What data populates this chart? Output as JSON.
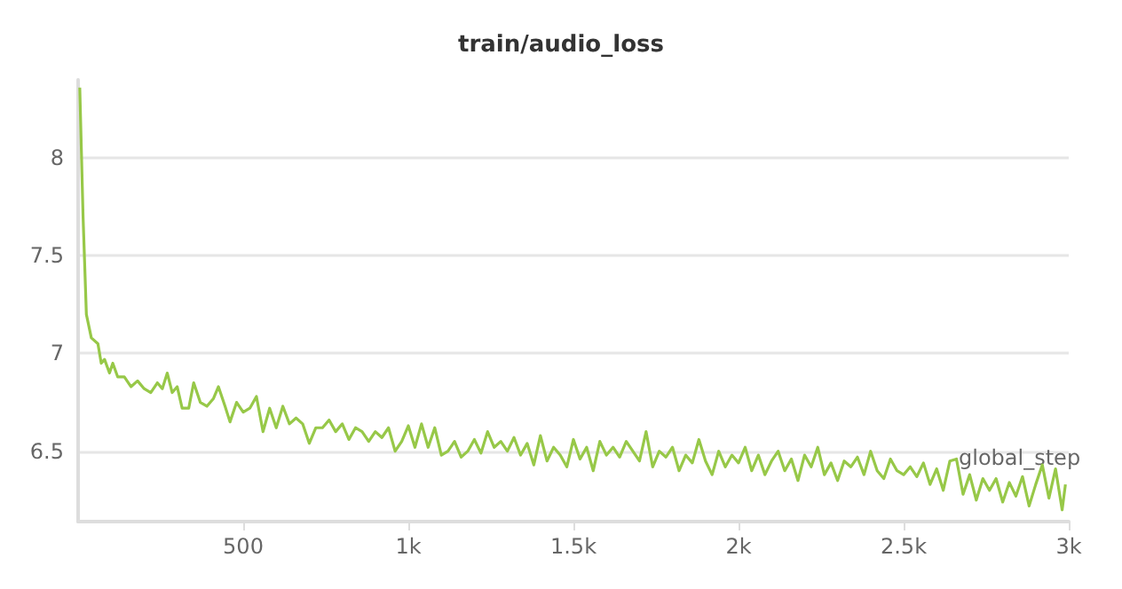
{
  "chart_data": {
    "type": "line",
    "title": "train/audio_loss",
    "xlabel": "global_step",
    "xlim": [
      0,
      3000
    ],
    "xticks": [
      500,
      {
        "value": 1000,
        "label": "1k"
      },
      {
        "value": 1500,
        "label": "1.5k"
      },
      {
        "value": 2000,
        "label": "2k"
      },
      {
        "value": 2500,
        "label": "2.5k"
      },
      {
        "value": 3000,
        "label": "3k"
      }
    ],
    "ylim": [
      6.14,
      8.4
    ],
    "yticks": [
      6.5,
      7,
      7.5,
      8
    ],
    "grid": "y",
    "marker": "none",
    "line_style": "solid",
    "series": [
      {
        "color": "#97c848",
        "x": [
          5,
          15,
          25,
          40,
          60,
          70,
          80,
          95,
          105,
          120,
          140,
          160,
          180,
          200,
          220,
          240,
          255,
          270,
          285,
          300,
          315,
          335,
          350,
          370,
          390,
          410,
          425,
          445,
          460,
          480,
          500,
          520,
          540,
          560,
          580,
          600,
          620,
          640,
          660,
          680,
          700,
          720,
          740,
          760,
          780,
          800,
          820,
          840,
          860,
          880,
          900,
          920,
          940,
          960,
          980,
          1000,
          1020,
          1040,
          1060,
          1080,
          1100,
          1120,
          1140,
          1160,
          1180,
          1200,
          1220,
          1240,
          1260,
          1280,
          1300,
          1320,
          1340,
          1360,
          1380,
          1400,
          1420,
          1440,
          1460,
          1480,
          1500,
          1520,
          1540,
          1560,
          1580,
          1600,
          1620,
          1640,
          1660,
          1680,
          1700,
          1720,
          1740,
          1760,
          1780,
          1800,
          1820,
          1840,
          1860,
          1880,
          1900,
          1920,
          1940,
          1960,
          1980,
          2000,
          2020,
          2040,
          2060,
          2080,
          2100,
          2120,
          2140,
          2160,
          2180,
          2200,
          2220,
          2240,
          2260,
          2280,
          2300,
          2320,
          2340,
          2360,
          2380,
          2400,
          2420,
          2440,
          2460,
          2480,
          2500,
          2520,
          2540,
          2560,
          2580,
          2600,
          2620,
          2640,
          2660,
          2680,
          2700,
          2720,
          2740,
          2760,
          2780,
          2800,
          2820,
          2840,
          2860,
          2880,
          2900,
          2920,
          2940,
          2960,
          2980,
          2990
        ],
        "values": [
          8.36,
          7.7,
          7.2,
          7.08,
          7.05,
          6.95,
          6.97,
          6.9,
          6.95,
          6.88,
          6.88,
          6.83,
          6.86,
          6.82,
          6.8,
          6.85,
          6.82,
          6.9,
          6.8,
          6.83,
          6.72,
          6.72,
          6.85,
          6.75,
          6.73,
          6.77,
          6.83,
          6.73,
          6.65,
          6.75,
          6.7,
          6.72,
          6.78,
          6.6,
          6.72,
          6.62,
          6.73,
          6.64,
          6.67,
          6.64,
          6.54,
          6.62,
          6.62,
          6.66,
          6.6,
          6.64,
          6.56,
          6.62,
          6.6,
          6.55,
          6.6,
          6.57,
          6.62,
          6.5,
          6.55,
          6.63,
          6.52,
          6.64,
          6.52,
          6.62,
          6.48,
          6.5,
          6.55,
          6.47,
          6.5,
          6.56,
          6.49,
          6.6,
          6.52,
          6.55,
          6.5,
          6.57,
          6.48,
          6.54,
          6.43,
          6.58,
          6.45,
          6.52,
          6.48,
          6.42,
          6.56,
          6.46,
          6.52,
          6.4,
          6.55,
          6.48,
          6.52,
          6.47,
          6.55,
          6.5,
          6.45,
          6.6,
          6.42,
          6.5,
          6.47,
          6.52,
          6.4,
          6.48,
          6.44,
          6.56,
          6.45,
          6.38,
          6.5,
          6.42,
          6.48,
          6.44,
          6.52,
          6.4,
          6.48,
          6.38,
          6.45,
          6.5,
          6.4,
          6.46,
          6.35,
          6.48,
          6.42,
          6.52,
          6.38,
          6.44,
          6.35,
          6.45,
          6.42,
          6.47,
          6.38,
          6.5,
          6.4,
          6.36,
          6.46,
          6.4,
          6.38,
          6.42,
          6.37,
          6.44,
          6.33,
          6.41,
          6.3,
          6.45,
          6.46,
          6.28,
          6.38,
          6.25,
          6.36,
          6.3,
          6.36,
          6.24,
          6.34,
          6.27,
          6.37,
          6.22,
          6.33,
          6.43,
          6.26,
          6.41,
          6.2,
          6.33
        ]
      }
    ]
  }
}
